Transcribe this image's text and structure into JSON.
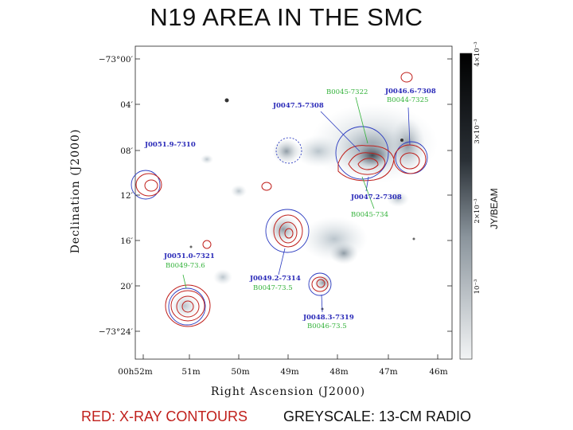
{
  "title": "N19 AREA IN THE SMC",
  "axes": {
    "ylabel": "Declination (J2000)",
    "xlabel": "Right Ascension (J2000)",
    "yticks": [
      "−73°00′",
      "04′",
      "08′",
      "12′",
      "16′",
      "20′",
      "−73°24′"
    ],
    "xticks": [
      "00h52m",
      "51m",
      "50m",
      "49m",
      "48m",
      "47m",
      "46m"
    ]
  },
  "colorbar": {
    "label": "JY/BEAM",
    "ticks": [
      "4×10⁻³",
      "3×10⁻³",
      "2×10⁻³",
      "10⁻³"
    ]
  },
  "sources": {
    "J0046_6": "J0046.6-7308",
    "B0044": "B0044-7325",
    "B0045_7322": "B0045-7322",
    "J0047_5": "J0047.5-7308",
    "J0051_9": "J0051.9-7310",
    "J0047_2": "J0047.2-7308",
    "B0045_734": "B0045-734",
    "J0051_0": "J0051.0-7321",
    "B0049": "B0049-73.6",
    "J0049_2": "J0049.2-7314",
    "B0047": "B0047-73.5",
    "J0048_3": "J0048.3-7319",
    "B0046": "B0046-73.5"
  },
  "captions": {
    "red": "RED: X-RAY CONTOURS",
    "grey": "GREYSCALE: 13-CM RADIO"
  },
  "colors": {
    "xray": "#c0201c",
    "source_label": "#2a2ab8",
    "alt_label": "#33b23a"
  }
}
